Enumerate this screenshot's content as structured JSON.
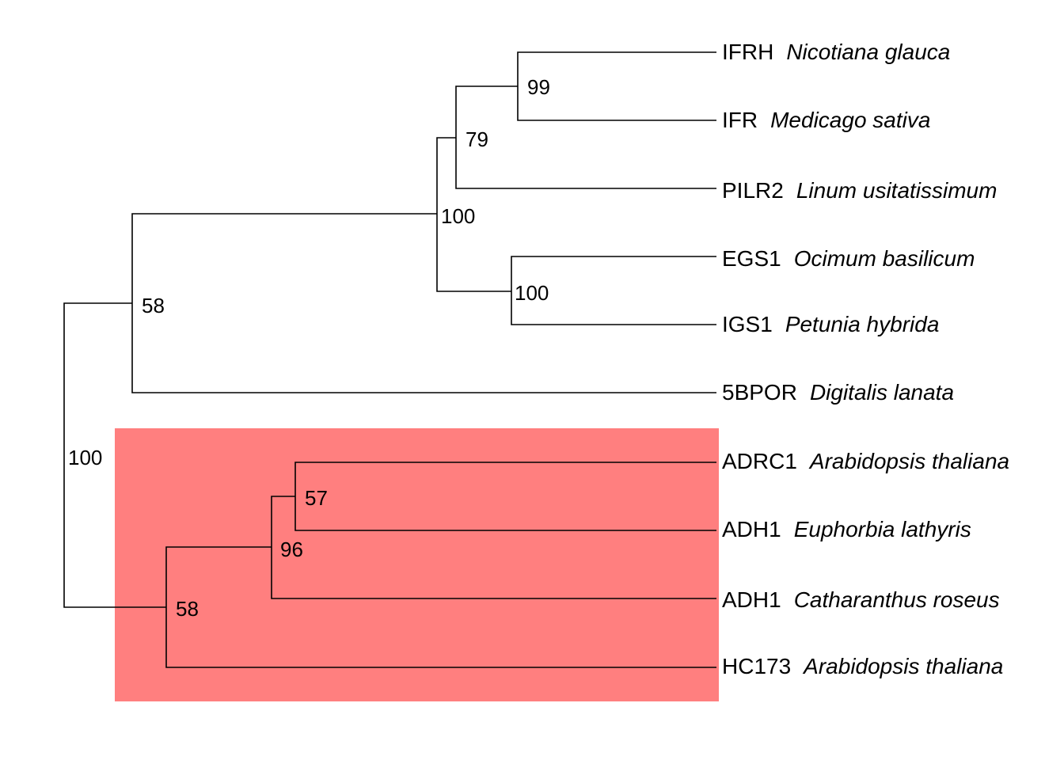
{
  "tree": {
    "highlight_color": "#ff7f7f",
    "branch_color": "#000000",
    "leaves": [
      {
        "gene": "IFRH",
        "species": "Nicotiana glauca"
      },
      {
        "gene": "IFR",
        "species": "Medicago sativa"
      },
      {
        "gene": "PILR2",
        "species": "Linum usitatissimum"
      },
      {
        "gene": "EGS1",
        "species": "Ocimum basilicum"
      },
      {
        "gene": "IGS1",
        "species": "Petunia hybrida"
      },
      {
        "gene": "5BPOR",
        "species": "Digitalis lanata"
      },
      {
        "gene": "ADRC1",
        "species": "Arabidopsis thaliana"
      },
      {
        "gene": "ADH1",
        "species": "Euphorbia lathyris"
      },
      {
        "gene": "ADH1",
        "species": "Catharanthus roseus"
      },
      {
        "gene": "HC173",
        "species": "Arabidopsis thaliana"
      }
    ],
    "support": {
      "ifrh_ifr": "99",
      "ifr_pilr2": "79",
      "ifr_group_igs": "100",
      "egs1_igs1": "100",
      "ifr_group_5bpor": "58",
      "root": "100",
      "adrc1_adh1": "57",
      "adh_clade": "96",
      "hc173_clade": "58"
    }
  }
}
